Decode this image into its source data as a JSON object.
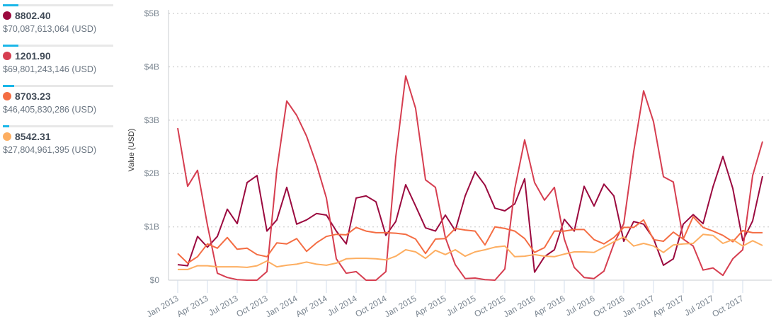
{
  "legend": [
    {
      "name": "8802.40",
      "total": "$70,087,613,064 (USD)",
      "color": "#9b0a3f",
      "share": 0.14
    },
    {
      "name": "1201.90",
      "total": "$69,801,243,146 (USD)",
      "color": "#d63e50",
      "share": 0.14
    },
    {
      "name": "8703.23",
      "total": "$46,405,830,286 (USD)",
      "color": "#f46d43",
      "share": 0.1
    },
    {
      "name": "8542.31",
      "total": "$27,804,961,395 (USD)",
      "color": "#fdae61",
      "share": 0.06
    }
  ],
  "chart_data": {
    "type": "line",
    "xlabel": "",
    "ylabel": "Value (USD)",
    "ylim": [
      0,
      5000000000
    ],
    "yticks": [
      "$0",
      "$1B",
      "$2B",
      "$3B",
      "$4B",
      "$5B"
    ],
    "xticks": [
      "Jan 2013",
      "Apr 2013",
      "Jul 2013",
      "Oct 2013",
      "Jan 2014",
      "Apr 2014",
      "Jul 2014",
      "Oct 2014",
      "Jan 2015",
      "Apr 2015",
      "Jul 2015",
      "Oct 2015",
      "Jan 2016",
      "Apr 2016",
      "Jul 2016",
      "Oct 2016",
      "Jan 2017",
      "Apr 2017",
      "Jul 2017",
      "Oct 2017"
    ],
    "x_start": "2013-01",
    "x_end": "2017-12",
    "x_interval": "monthly",
    "grid": "horizontal dotted",
    "value_unit": "billions USD",
    "series": [
      {
        "name": "8802.40",
        "color": "#9b0a3f",
        "values": [
          0.29,
          0.27,
          0.82,
          0.62,
          0.82,
          1.33,
          1.06,
          1.83,
          1.96,
          0.92,
          1.13,
          1.74,
          1.05,
          1.13,
          1.25,
          1.22,
          0.92,
          0.68,
          1.54,
          1.58,
          1.47,
          0.84,
          1.1,
          1.79,
          1.39,
          0.98,
          0.92,
          1.22,
          0.93,
          1.58,
          2.03,
          1.78,
          1.35,
          1.3,
          1.43,
          1.9,
          0.15,
          0.44,
          0.57,
          1.14,
          0.92,
          1.76,
          1.39,
          1.8,
          1.58,
          0.73,
          1.1,
          1.05,
          0.78,
          0.28,
          0.4,
          1.05,
          1.23,
          1.06,
          1.75,
          2.32,
          1.72,
          0.74,
          1.11,
          1.95
        ]
      },
      {
        "name": "1201.90",
        "color": "#d63e50",
        "values": [
          2.85,
          1.76,
          2.06,
          1.03,
          0.13,
          0.05,
          0.01,
          0,
          0,
          0.16,
          2.07,
          3.36,
          3.09,
          2.7,
          2.17,
          1.54,
          0.4,
          0.13,
          0.16,
          0,
          0,
          0.16,
          2.31,
          3.83,
          3.22,
          1.88,
          1.74,
          0.8,
          0.29,
          0.03,
          0.04,
          0.01,
          0,
          0.21,
          1.71,
          2.63,
          1.83,
          1.5,
          1.74,
          0.77,
          0.24,
          0.05,
          0.03,
          0.17,
          0.68,
          1.06,
          2.41,
          3.55,
          2.97,
          1.94,
          1.84,
          0.77,
          0.64,
          0.19,
          0.23,
          0.09,
          0.4,
          0.57,
          1.96,
          2.6
        ]
      },
      {
        "name": "8703.23",
        "color": "#f46d43",
        "values": [
          0.5,
          0.32,
          0.44,
          0.68,
          0.6,
          0.8,
          0.58,
          0.6,
          0.48,
          0.44,
          0.7,
          0.68,
          0.78,
          0.54,
          0.7,
          0.82,
          0.86,
          0.85,
          0.99,
          0.92,
          0.89,
          0.89,
          0.88,
          0.86,
          0.77,
          0.5,
          0.77,
          0.78,
          0.97,
          0.94,
          0.92,
          0.66,
          1.0,
          0.97,
          0.92,
          0.78,
          0.52,
          0.61,
          0.92,
          0.92,
          0.95,
          0.95,
          0.76,
          0.68,
          0.8,
          0.99,
          0.99,
          1.13,
          0.76,
          0.73,
          0.9,
          0.77,
          1.19,
          0.99,
          0.92,
          0.84,
          0.72,
          0.93,
          0.89,
          0.89
        ]
      },
      {
        "name": "8542.31",
        "color": "#fdae61",
        "values": [
          0.2,
          0.2,
          0.27,
          0.27,
          0.25,
          0.25,
          0.25,
          0.24,
          0.27,
          0.36,
          0.25,
          0.28,
          0.3,
          0.34,
          0.3,
          0.28,
          0.32,
          0.4,
          0.41,
          0.41,
          0.4,
          0.38,
          0.45,
          0.57,
          0.53,
          0.41,
          0.56,
          0.48,
          0.57,
          0.45,
          0.53,
          0.57,
          0.62,
          0.64,
          0.44,
          0.45,
          0.48,
          0.45,
          0.44,
          0.49,
          0.53,
          0.53,
          0.52,
          0.62,
          0.72,
          0.81,
          0.64,
          0.69,
          0.64,
          0.52,
          0.66,
          0.68,
          0.69,
          0.86,
          0.84,
          0.69,
          0.76,
          0.64,
          0.74,
          0.65
        ]
      }
    ]
  }
}
